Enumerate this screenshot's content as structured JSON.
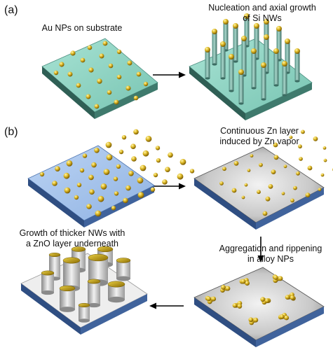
{
  "panels": {
    "a": "(a)",
    "b": "(b)"
  },
  "captions": {
    "a_left": "Au NPs on substrate",
    "a_right_line1": "Nucleation and axial growth",
    "a_right_line2": "of Si NWs",
    "b_topright_line1": "Continuous Zn layer",
    "b_topright_line2": "induced by Zn vapor",
    "b_mid_line1": "Aggregation and rippening",
    "b_mid_line2": "in alloy NPs",
    "b_bottomleft_line1": "Growth of thicker NWs with",
    "b_bottomleft_line2": "a ZnO layer underneath"
  },
  "colors": {
    "substrate_a": "#8fd4c4",
    "substrate_b": "#a9c7ee",
    "zn_layer": "#c9c9c9",
    "gold": "#d8b21e",
    "arrow": "#000000"
  },
  "icons": [
    "arrow-right-icon",
    "arrow-down-icon",
    "arrow-left-icon"
  ]
}
